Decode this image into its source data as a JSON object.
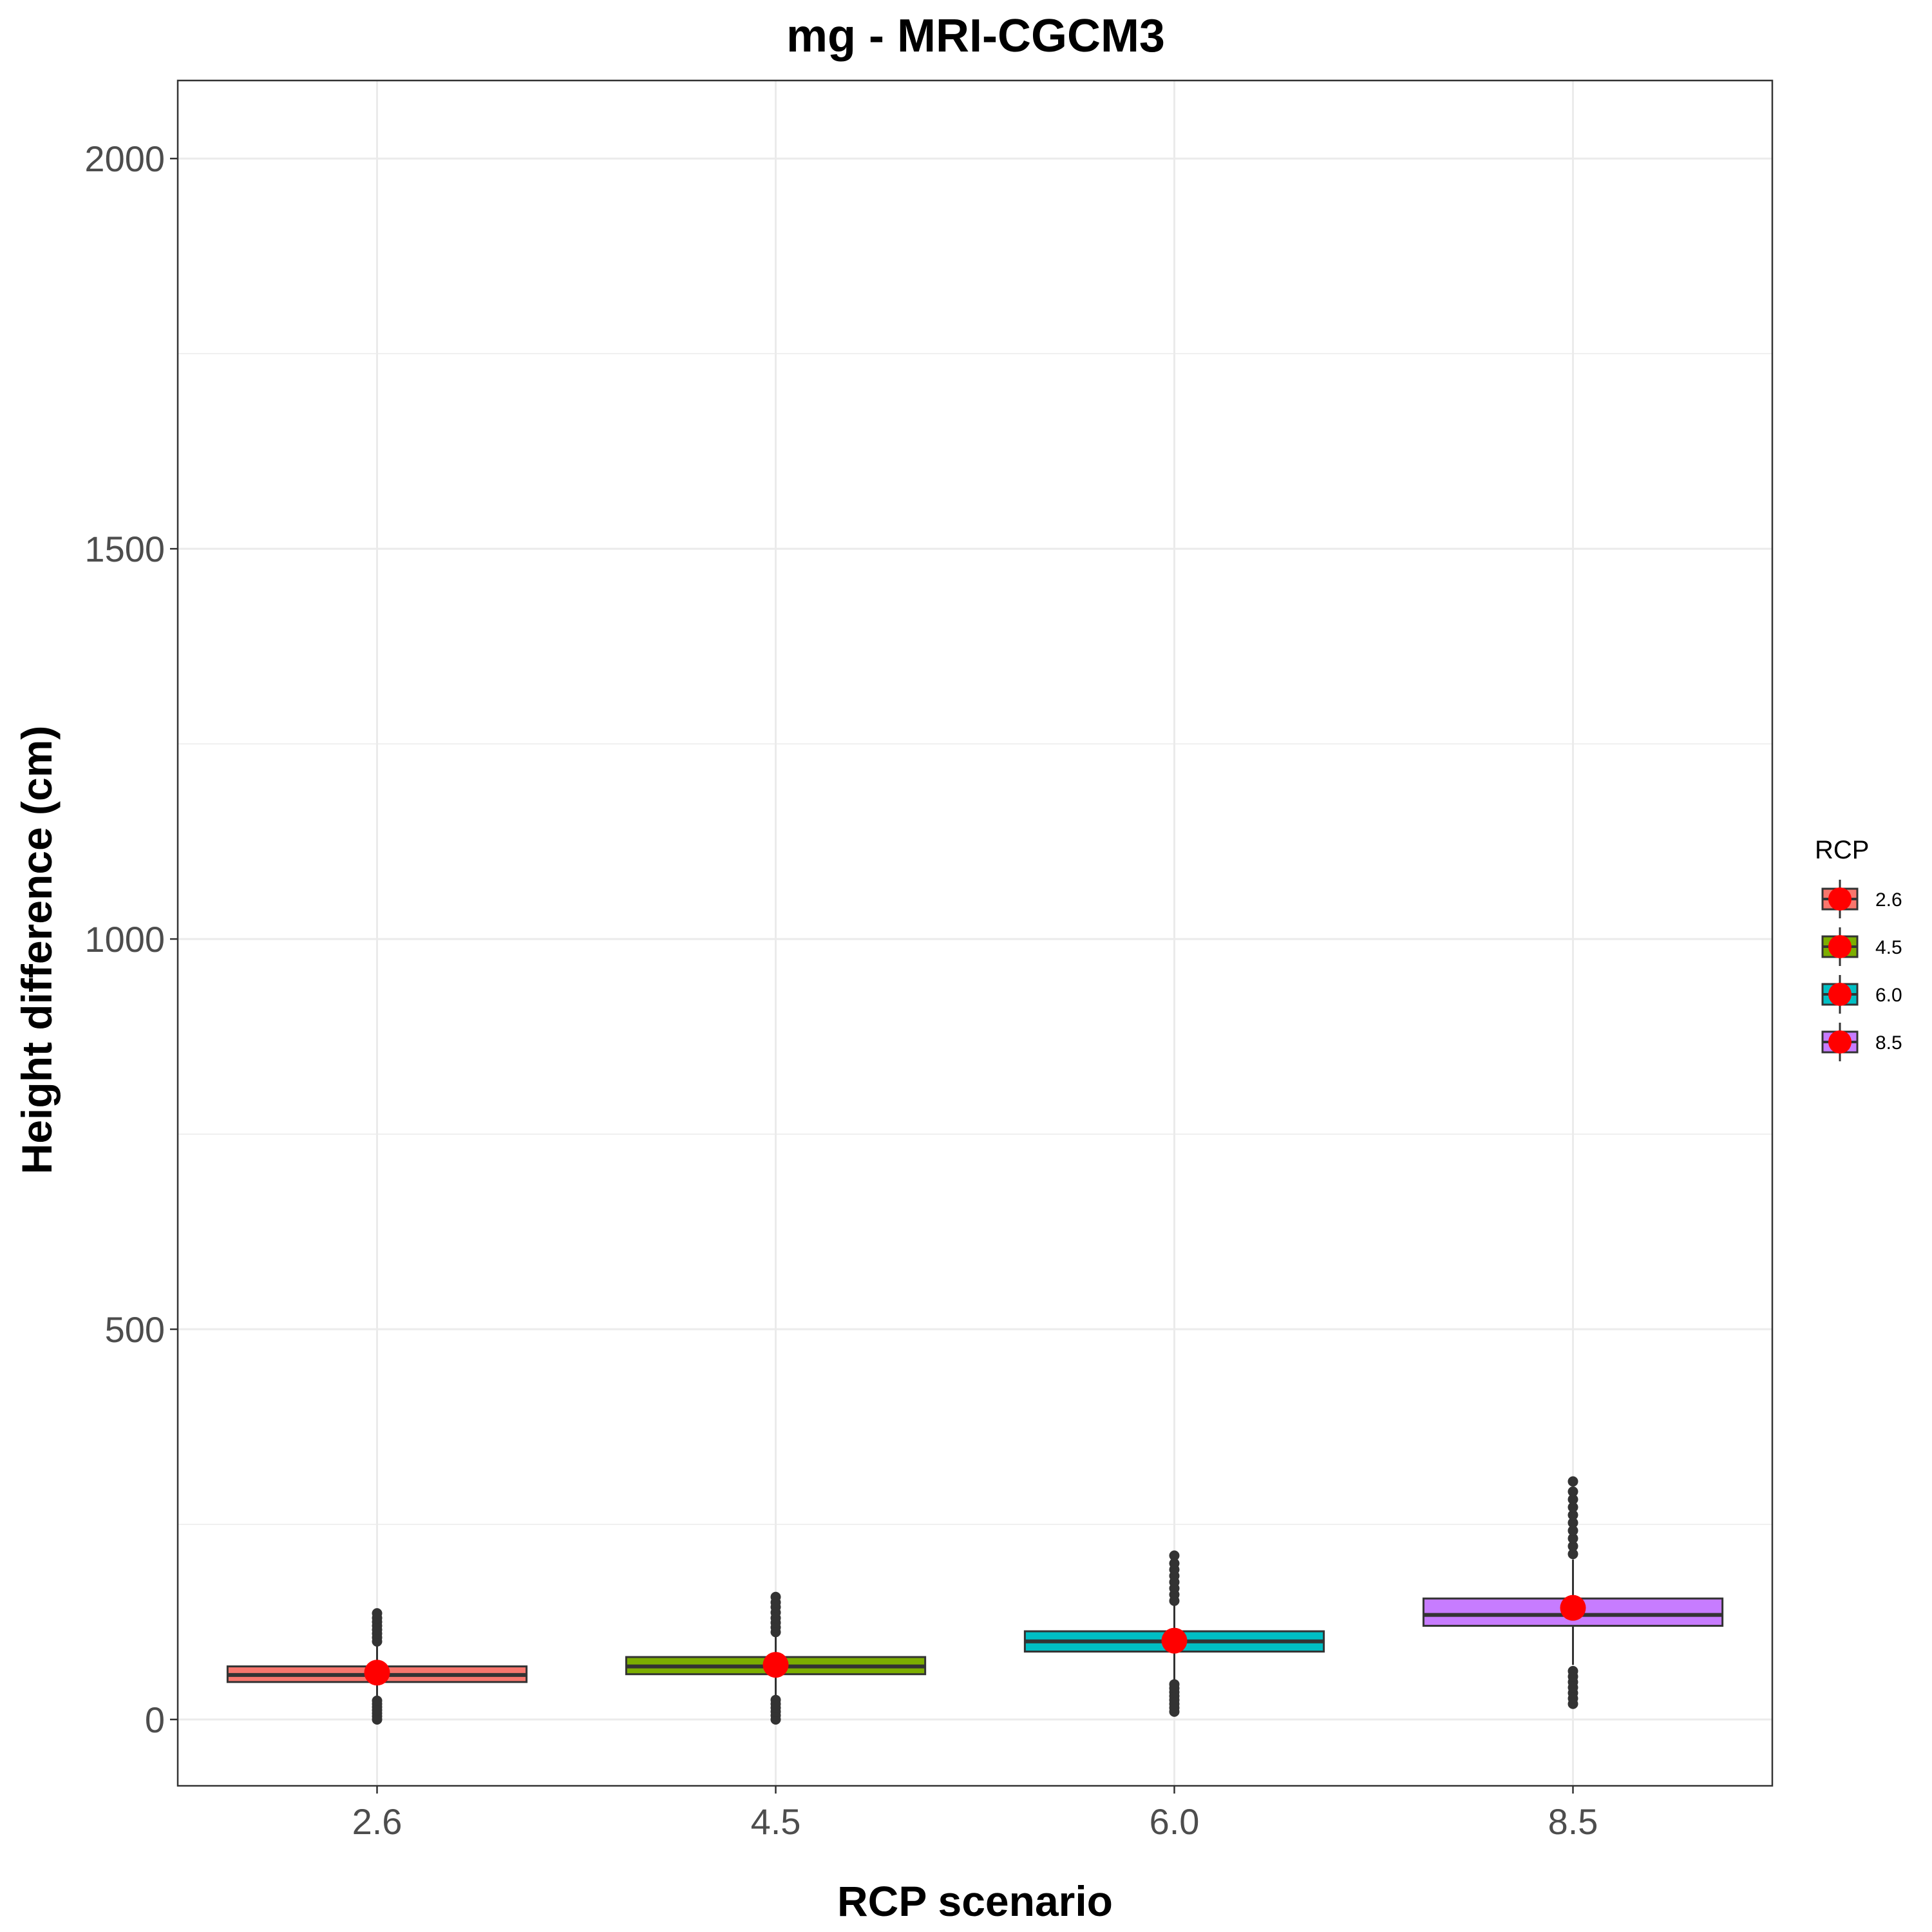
{
  "chart_data": {
    "type": "boxplot",
    "title": "mg - MRI-CGCM3",
    "xlabel": "RCP scenario",
    "ylabel": "Height difference (cm)",
    "ylim": [
      -85,
      2100
    ],
    "yticks": [
      0,
      500,
      1000,
      1500,
      2000
    ],
    "grid": true,
    "legend": {
      "title": "RCP",
      "position": "right"
    },
    "categories": [
      "2.6",
      "4.5",
      "6.0",
      "8.5"
    ],
    "series": [
      {
        "name": "2.6",
        "color": "#F8766D",
        "whisker_low": 28,
        "q1": 48,
        "median": 57,
        "q3": 68,
        "whisker_high": 95,
        "mean": 60,
        "outliers_low": [
          0,
          4,
          8,
          12,
          16,
          20,
          24
        ],
        "outliers_high": [
          100,
          105,
          110,
          115,
          120,
          125,
          130,
          136
        ]
      },
      {
        "name": "4.5",
        "color": "#7CAE00",
        "whisker_low": 30,
        "q1": 58,
        "median": 68,
        "q3": 80,
        "whisker_high": 110,
        "mean": 70,
        "outliers_low": [
          0,
          5,
          10,
          15,
          20,
          25
        ],
        "outliers_high": [
          112,
          118,
          124,
          130,
          137,
          144,
          150,
          157
        ]
      },
      {
        "name": "6.0",
        "color": "#00BFC4",
        "whisker_low": 50,
        "q1": 87,
        "median": 100,
        "q3": 113,
        "whisker_high": 148,
        "mean": 101,
        "outliers_low": [
          10,
          15,
          20,
          25,
          30,
          35,
          40,
          45
        ],
        "outliers_high": [
          152,
          160,
          168,
          176,
          184,
          192,
          200,
          210
        ]
      },
      {
        "name": "8.5",
        "color": "#C77CFF",
        "whisker_low": 70,
        "q1": 120,
        "median": 134,
        "q3": 155,
        "whisker_high": 205,
        "mean": 143,
        "outliers_low": [
          20,
          27,
          34,
          41,
          48,
          55,
          62
        ],
        "outliers_high": [
          212,
          222,
          232,
          242,
          252,
          262,
          272,
          282,
          292,
          305
        ]
      }
    ],
    "mean_marker_color": "#FF0000"
  }
}
